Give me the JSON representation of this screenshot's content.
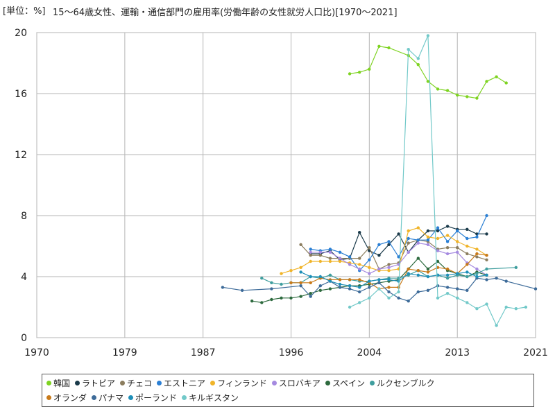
{
  "header": {
    "unit": "[単位：%]",
    "title": "15～64歳女性、運輸・通信部門の雇用率(労働年齢の女性就労人口比)[1970～2021]"
  },
  "chart_data": {
    "type": "line",
    "title": "15～64歳女性、運輸・通信部門の雇用率(労働年齢の女性就労人口比)[1970～2021]",
    "unit": "[単位：%]",
    "xlim": [
      1970,
      2021
    ],
    "ylim": [
      0,
      20
    ],
    "x_ticks": [
      "1970",
      "1979",
      "1987",
      "1996",
      "2004",
      "2013",
      "2021"
    ],
    "y_ticks": [
      "0",
      "4",
      "8",
      "12",
      "16",
      "20"
    ],
    "grid": true,
    "legend_position": "bottom",
    "series": [
      {
        "name": "韓国",
        "color": "#7ed321",
        "points": [
          [
            2002,
            17.3
          ],
          [
            2003,
            17.4
          ],
          [
            2004,
            17.6
          ],
          [
            2005,
            19.1
          ],
          [
            2006,
            19.0
          ],
          [
            2008,
            18.5
          ],
          [
            2009,
            17.9
          ],
          [
            2010,
            16.8
          ],
          [
            2011,
            16.3
          ],
          [
            2012,
            16.2
          ],
          [
            2013,
            15.9
          ],
          [
            2014,
            15.8
          ],
          [
            2015,
            15.7
          ],
          [
            2016,
            16.8
          ],
          [
            2017,
            17.1
          ],
          [
            2018,
            16.7
          ]
        ]
      },
      {
        "name": "ラトビア",
        "color": "#1a3a4a",
        "points": [
          [
            1998,
            5.5
          ],
          [
            1999,
            5.5
          ],
          [
            2000,
            5.7
          ],
          [
            2001,
            5.1
          ],
          [
            2002,
            5.2
          ],
          [
            2003,
            6.9
          ],
          [
            2004,
            5.7
          ],
          [
            2005,
            5.4
          ],
          [
            2006,
            6.1
          ],
          [
            2007,
            6.8
          ],
          [
            2008,
            5.6
          ],
          [
            2009,
            6.4
          ],
          [
            2010,
            7.0
          ],
          [
            2011,
            7.0
          ],
          [
            2012,
            7.3
          ],
          [
            2013,
            7.1
          ],
          [
            2014,
            7.1
          ],
          [
            2015,
            6.8
          ],
          [
            2016,
            6.8
          ]
        ]
      },
      {
        "name": "チェコ",
        "color": "#8b7d5e",
        "points": [
          [
            1997,
            6.1
          ],
          [
            1998,
            5.4
          ],
          [
            1999,
            5.4
          ],
          [
            2000,
            5.2
          ],
          [
            2001,
            5.2
          ],
          [
            2002,
            5.2
          ],
          [
            2003,
            5.2
          ],
          [
            2004,
            5.9
          ],
          [
            2005,
            4.5
          ],
          [
            2006,
            4.8
          ],
          [
            2007,
            4.9
          ],
          [
            2008,
            6.2
          ],
          [
            2009,
            6.4
          ],
          [
            2010,
            6.3
          ],
          [
            2011,
            5.8
          ],
          [
            2012,
            5.9
          ],
          [
            2013,
            5.9
          ],
          [
            2014,
            5.5
          ],
          [
            2015,
            5.3
          ],
          [
            2016,
            5.1
          ]
        ]
      },
      {
        "name": "エストニア",
        "color": "#2a7fd4",
        "points": [
          [
            1998,
            5.8
          ],
          [
            1999,
            5.7
          ],
          [
            2000,
            5.8
          ],
          [
            2001,
            5.6
          ],
          [
            2002,
            5.3
          ],
          [
            2003,
            4.4
          ],
          [
            2004,
            5.1
          ],
          [
            2005,
            6.1
          ],
          [
            2006,
            6.3
          ],
          [
            2007,
            5.3
          ],
          [
            2008,
            6.5
          ],
          [
            2009,
            6.4
          ],
          [
            2010,
            6.4
          ],
          [
            2011,
            7.2
          ],
          [
            2012,
            6.3
          ],
          [
            2013,
            7.0
          ],
          [
            2014,
            6.5
          ],
          [
            2015,
            6.6
          ],
          [
            2016,
            8.0
          ]
        ]
      },
      {
        "name": "フィンランド",
        "color": "#f0b429",
        "points": [
          [
            1995,
            4.2
          ],
          [
            1996,
            4.4
          ],
          [
            1997,
            4.6
          ],
          [
            1998,
            5.0
          ],
          [
            1999,
            5.0
          ],
          [
            2000,
            5.0
          ],
          [
            2001,
            5.0
          ],
          [
            2002,
            4.9
          ],
          [
            2003,
            4.8
          ],
          [
            2004,
            4.6
          ],
          [
            2005,
            4.4
          ],
          [
            2006,
            4.4
          ],
          [
            2007,
            4.5
          ],
          [
            2008,
            7.0
          ],
          [
            2009,
            7.2
          ],
          [
            2010,
            6.6
          ],
          [
            2011,
            6.5
          ],
          [
            2012,
            6.7
          ],
          [
            2013,
            6.3
          ],
          [
            2014,
            6.0
          ],
          [
            2015,
            5.8
          ],
          [
            2016,
            5.4
          ]
        ]
      },
      {
        "name": "スロバキア",
        "color": "#a58ae0",
        "points": [
          [
            1998,
            5.6
          ],
          [
            1999,
            5.6
          ],
          [
            2000,
            5.6
          ],
          [
            2001,
            5.2
          ],
          [
            2002,
            4.8
          ],
          [
            2003,
            4.5
          ],
          [
            2004,
            4.2
          ],
          [
            2005,
            4.5
          ],
          [
            2006,
            4.6
          ],
          [
            2007,
            4.8
          ],
          [
            2008,
            5.6
          ],
          [
            2009,
            6.2
          ],
          [
            2010,
            6.1
          ],
          [
            2011,
            5.7
          ],
          [
            2012,
            5.5
          ],
          [
            2013,
            5.6
          ],
          [
            2014,
            4.9
          ],
          [
            2015,
            4.5
          ],
          [
            2016,
            4.1
          ]
        ]
      },
      {
        "name": "スペイン",
        "color": "#2d6a3e",
        "points": [
          [
            1992,
            2.4
          ],
          [
            1993,
            2.3
          ],
          [
            1994,
            2.5
          ],
          [
            1995,
            2.6
          ],
          [
            1996,
            2.6
          ],
          [
            1997,
            2.7
          ],
          [
            1998,
            2.9
          ],
          [
            1999,
            3.1
          ],
          [
            2000,
            3.2
          ],
          [
            2001,
            3.3
          ],
          [
            2002,
            3.4
          ],
          [
            2003,
            3.4
          ],
          [
            2004,
            3.5
          ],
          [
            2005,
            3.6
          ],
          [
            2006,
            3.7
          ],
          [
            2007,
            3.8
          ],
          [
            2008,
            4.5
          ],
          [
            2009,
            5.2
          ],
          [
            2010,
            4.5
          ],
          [
            2011,
            5.0
          ],
          [
            2012,
            4.4
          ],
          [
            2013,
            4.2
          ],
          [
            2014,
            4.0
          ],
          [
            2015,
            4.3
          ],
          [
            2016,
            4.1
          ]
        ]
      },
      {
        "name": "ルクセンブルク",
        "color": "#3f9e9e",
        "points": [
          [
            1993,
            3.9
          ],
          [
            1994,
            3.6
          ],
          [
            1995,
            3.5
          ],
          [
            1996,
            3.6
          ],
          [
            1997,
            3.6
          ],
          [
            1998,
            4.0
          ],
          [
            1999,
            3.9
          ],
          [
            2000,
            4.1
          ],
          [
            2001,
            3.8
          ],
          [
            2002,
            3.8
          ],
          [
            2003,
            3.7
          ],
          [
            2004,
            3.7
          ],
          [
            2005,
            3.8
          ],
          [
            2006,
            3.9
          ],
          [
            2007,
            3.9
          ],
          [
            2008,
            4.1
          ],
          [
            2009,
            4.4
          ],
          [
            2010,
            4.0
          ],
          [
            2011,
            4.1
          ],
          [
            2012,
            3.9
          ],
          [
            2013,
            4.1
          ],
          [
            2014,
            4.0
          ],
          [
            2015,
            4.2
          ],
          [
            2016,
            4.5
          ],
          [
            2019,
            4.6
          ]
        ]
      },
      {
        "name": "オランダ",
        "color": "#c87a1a",
        "points": [
          [
            1996,
            3.6
          ],
          [
            1997,
            3.6
          ],
          [
            1998,
            3.6
          ],
          [
            1999,
            3.9
          ],
          [
            2000,
            3.8
          ],
          [
            2001,
            3.8
          ],
          [
            2002,
            3.8
          ],
          [
            2003,
            3.8
          ],
          [
            2004,
            3.6
          ],
          [
            2005,
            3.2
          ],
          [
            2006,
            3.3
          ],
          [
            2007,
            3.3
          ],
          [
            2008,
            4.5
          ],
          [
            2009,
            4.4
          ],
          [
            2010,
            4.3
          ],
          [
            2011,
            4.6
          ],
          [
            2012,
            4.5
          ],
          [
            2013,
            4.2
          ],
          [
            2014,
            4.8
          ],
          [
            2015,
            5.5
          ],
          [
            2016,
            5.4
          ]
        ]
      },
      {
        "name": "パナマ",
        "color": "#3d6b99",
        "points": [
          [
            1989,
            3.3
          ],
          [
            1991,
            3.1
          ],
          [
            1994,
            3.2
          ],
          [
            1997,
            3.4
          ],
          [
            1998,
            2.7
          ],
          [
            1999,
            3.4
          ],
          [
            2000,
            3.7
          ],
          [
            2001,
            3.3
          ],
          [
            2002,
            3.2
          ],
          [
            2003,
            3.0
          ],
          [
            2004,
            3.3
          ],
          [
            2005,
            3.6
          ],
          [
            2006,
            3.0
          ],
          [
            2007,
            2.6
          ],
          [
            2008,
            2.4
          ],
          [
            2009,
            3.0
          ],
          [
            2010,
            3.1
          ],
          [
            2011,
            3.4
          ],
          [
            2012,
            3.3
          ],
          [
            2013,
            3.2
          ],
          [
            2014,
            3.1
          ],
          [
            2015,
            3.9
          ],
          [
            2016,
            3.8
          ],
          [
            2017,
            3.9
          ],
          [
            2018,
            3.7
          ],
          [
            2021,
            3.2
          ]
        ]
      },
      {
        "name": "ポーランド",
        "color": "#1e8fb8",
        "points": [
          [
            1997,
            4.3
          ],
          [
            1998,
            4.0
          ],
          [
            1999,
            4.0
          ],
          [
            2000,
            3.7
          ],
          [
            2001,
            3.5
          ],
          [
            2002,
            3.4
          ],
          [
            2003,
            3.3
          ],
          [
            2004,
            3.7
          ],
          [
            2005,
            3.8
          ],
          [
            2006,
            3.8
          ],
          [
            2007,
            3.7
          ],
          [
            2008,
            4.2
          ],
          [
            2009,
            4.1
          ],
          [
            2010,
            4.0
          ],
          [
            2011,
            4.1
          ],
          [
            2012,
            4.1
          ],
          [
            2013,
            4.2
          ],
          [
            2014,
            4.3
          ],
          [
            2015,
            4.0
          ],
          [
            2016,
            4.1
          ]
        ]
      },
      {
        "name": "キルギスタン",
        "color": "#72c9c9",
        "points": [
          [
            2002,
            2.0
          ],
          [
            2003,
            2.3
          ],
          [
            2004,
            2.6
          ],
          [
            2005,
            3.2
          ],
          [
            2006,
            2.6
          ],
          [
            2007,
            3.0
          ],
          [
            2008,
            18.9
          ],
          [
            2009,
            18.3
          ],
          [
            2010,
            19.8
          ],
          [
            2011,
            2.6
          ],
          [
            2012,
            2.9
          ],
          [
            2013,
            2.6
          ],
          [
            2014,
            2.3
          ],
          [
            2015,
            1.9
          ],
          [
            2016,
            2.2
          ],
          [
            2017,
            0.8
          ],
          [
            2018,
            2.0
          ],
          [
            2019,
            1.9
          ],
          [
            2020,
            2.0
          ]
        ]
      }
    ]
  }
}
